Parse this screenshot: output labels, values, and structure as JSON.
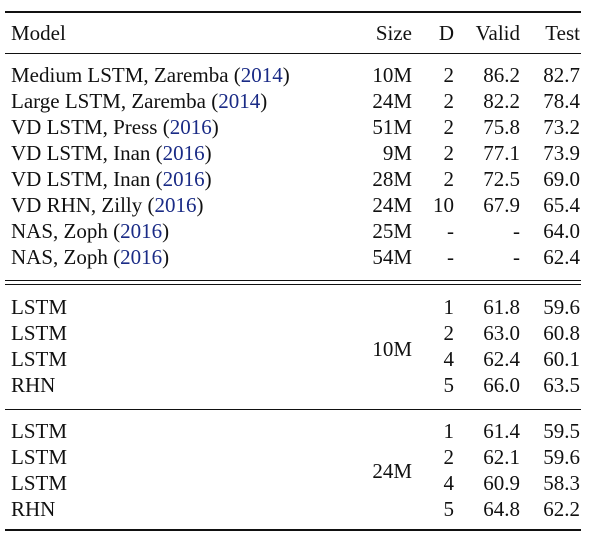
{
  "header": {
    "model": "Model",
    "size": "Size",
    "d": "D",
    "valid": "Valid",
    "test": "Test"
  },
  "baselines": [
    {
      "name": "Medium LSTM, Zaremba ",
      "year": "2014",
      "size": "10M",
      "d": "2",
      "valid": "86.2",
      "test": "82.7"
    },
    {
      "name": "Large LSTM, Zaremba ",
      "year": "2014",
      "size": "24M",
      "d": "2",
      "valid": "82.2",
      "test": "78.4"
    },
    {
      "name": "VD LSTM, Press ",
      "year": "2016",
      "size": "51M",
      "d": "2",
      "valid": "75.8",
      "test": "73.2"
    },
    {
      "name": "VD LSTM, Inan ",
      "year": "2016",
      "size": "9M",
      "d": "2",
      "valid": "77.1",
      "test": "73.9"
    },
    {
      "name": "VD LSTM, Inan ",
      "year": "2016",
      "size": "28M",
      "d": "2",
      "valid": "72.5",
      "test": "69.0"
    },
    {
      "name": "VD RHN, Zilly ",
      "year": "2016",
      "size": "24M",
      "d": "10",
      "valid": "67.9",
      "test": "65.4"
    },
    {
      "name": "NAS, Zoph ",
      "year": "2016",
      "size": "25M",
      "d": "-",
      "valid": "-",
      "test": "64.0"
    },
    {
      "name": "NAS, Zoph ",
      "year": "2016",
      "size": "54M",
      "d": "-",
      "valid": "-",
      "test": "62.4"
    }
  ],
  "groups": [
    {
      "size": "10M",
      "rows": [
        {
          "model": "LSTM",
          "d": "1",
          "valid": "61.8",
          "test": "59.6"
        },
        {
          "model": "LSTM",
          "d": "2",
          "valid": "63.0",
          "test": "60.8"
        },
        {
          "model": "LSTM",
          "d": "4",
          "valid": "62.4",
          "test": "60.1"
        },
        {
          "model": "RHN",
          "d": "5",
          "valid": "66.0",
          "test": "63.5"
        }
      ]
    },
    {
      "size": "24M",
      "rows": [
        {
          "model": "LSTM",
          "d": "1",
          "valid": "61.4",
          "test": "59.5"
        },
        {
          "model": "LSTM",
          "d": "2",
          "valid": "62.1",
          "test": "59.6"
        },
        {
          "model": "LSTM",
          "d": "4",
          "valid": "60.9",
          "test": "58.3"
        },
        {
          "model": "RHN",
          "d": "5",
          "valid": "64.8",
          "test": "62.2"
        }
      ]
    }
  ]
}
